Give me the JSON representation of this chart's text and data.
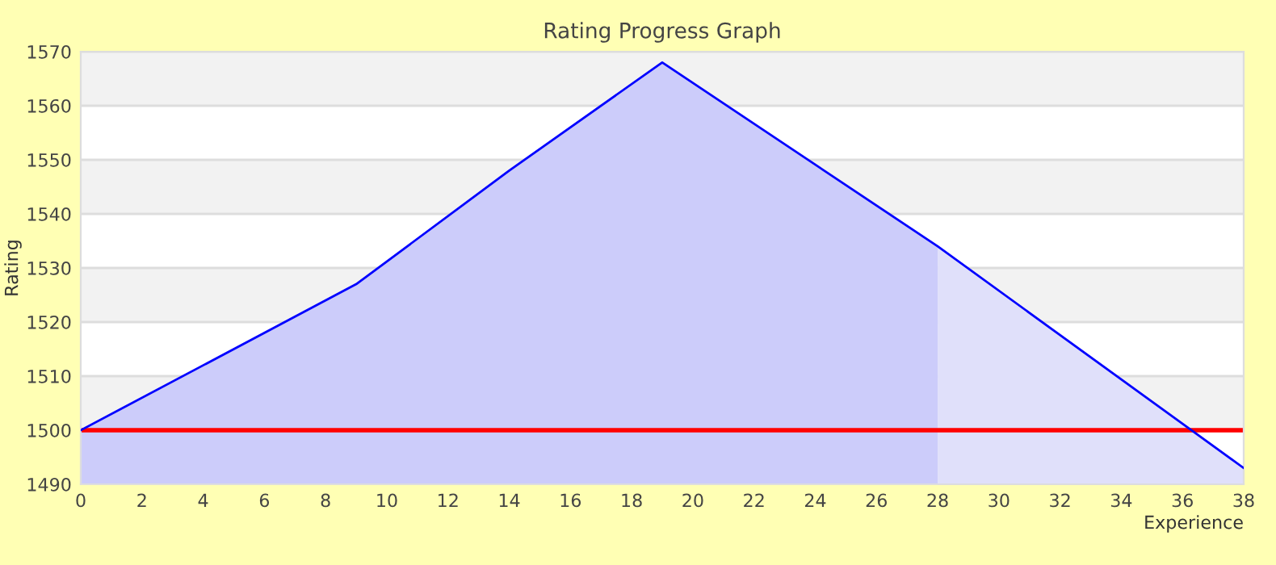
{
  "chart_data": {
    "type": "line",
    "title": "Rating Progress Graph",
    "xlabel": "Experience",
    "ylabel": "Rating",
    "xlim": [
      0,
      38
    ],
    "xticks": [
      0,
      2,
      4,
      6,
      8,
      10,
      12,
      14,
      16,
      18,
      20,
      22,
      24,
      26,
      28,
      30,
      32,
      34,
      36,
      38
    ],
    "ylim": [
      1490,
      1570
    ],
    "yticks": [
      1490,
      1500,
      1510,
      1520,
      1530,
      1540,
      1550,
      1560,
      1570
    ],
    "grid": "y",
    "legend": false,
    "series": [
      {
        "type": "area",
        "color": "#ccccfa",
        "x": [
          0,
          9,
          14,
          19,
          28
        ],
        "values": [
          1500,
          1527,
          1548,
          1568,
          1534
        ]
      },
      {
        "type": "area",
        "color": "#e0e0fa",
        "x": [
          28,
          38
        ],
        "values": [
          1534,
          1493
        ]
      },
      {
        "color": "#0000ff",
        "x": [
          0,
          9,
          14,
          19,
          28,
          38
        ],
        "values": [
          1500,
          1527,
          1548,
          1568,
          1534,
          1493
        ]
      }
    ],
    "ref_lines": [
      {
        "axis": "y",
        "value": 1500,
        "label": null,
        "color": "#ff0000"
      }
    ]
  }
}
